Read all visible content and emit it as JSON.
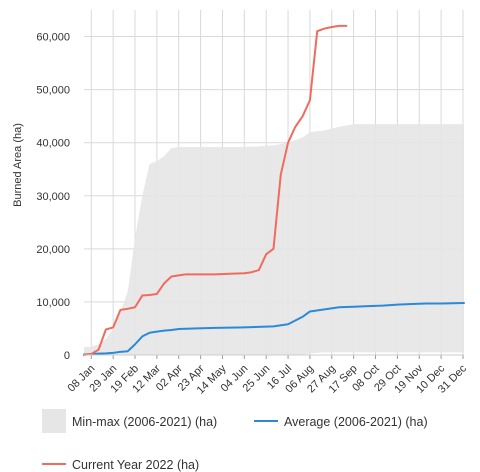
{
  "chart_data": {
    "type": "line",
    "title": "",
    "ylabel": "Burned Area (ha)",
    "xlabel": "",
    "ylim": [
      0,
      65000
    ],
    "yticks": [
      0,
      10000,
      20000,
      30000,
      40000,
      50000,
      60000
    ],
    "ytick_labels": [
      "0",
      "10,000",
      "20,000",
      "30,000",
      "40,000",
      "50,000",
      "60,000"
    ],
    "x_day_min": 1,
    "x_day_max": 366,
    "xticks": [
      {
        "label": "08 Jan",
        "day": 8
      },
      {
        "label": "29 Jan",
        "day": 29
      },
      {
        "label": "19 Feb",
        "day": 50
      },
      {
        "label": "12 Mar",
        "day": 71
      },
      {
        "label": "02 Apr",
        "day": 92
      },
      {
        "label": "23 Apr",
        "day": 113
      },
      {
        "label": "14 May",
        "day": 134
      },
      {
        "label": "04 Jun",
        "day": 155
      },
      {
        "label": "25 Jun",
        "day": 176
      },
      {
        "label": "16 Jul",
        "day": 197
      },
      {
        "label": "06 Aug",
        "day": 218
      },
      {
        "label": "27 Aug",
        "day": 239
      },
      {
        "label": "17 Sep",
        "day": 260
      },
      {
        "label": "08 Oct",
        "day": 281
      },
      {
        "label": "29 Oct",
        "day": 302
      },
      {
        "label": "19 Nov",
        "day": 323
      },
      {
        "label": "10 Dec",
        "day": 344
      },
      {
        "label": "31 Dec",
        "day": 365
      }
    ],
    "grid": true,
    "legend_position": "bottom",
    "series": [
      {
        "name": "Min-max (2006-2021) (ha)",
        "kind": "band",
        "color": "#e6e6e6",
        "x": [
          1,
          8,
          15,
          22,
          29,
          36,
          43,
          50,
          57,
          64,
          71,
          78,
          85,
          92,
          99,
          106,
          113,
          127,
          141,
          155,
          169,
          183,
          197,
          204,
          211,
          218,
          232,
          246,
          260,
          274,
          288,
          302,
          316,
          330,
          344,
          366
        ],
        "min": [
          0,
          0,
          0,
          0,
          0,
          0,
          0,
          0,
          0,
          0,
          0,
          0,
          0,
          0,
          0,
          0,
          0,
          0,
          0,
          0,
          0,
          0,
          0,
          0,
          0,
          300,
          500,
          500,
          500,
          500,
          500,
          500,
          500,
          500,
          500,
          500
        ],
        "max": [
          1500,
          1500,
          2000,
          3000,
          5000,
          8000,
          12000,
          22000,
          30000,
          36000,
          36500,
          37500,
          39000,
          39200,
          39200,
          39200,
          39200,
          39200,
          39200,
          39200,
          39300,
          39500,
          40000,
          40500,
          41000,
          42000,
          42300,
          43000,
          43500,
          43500,
          43500,
          43500,
          43500,
          43500,
          43500,
          43500
        ]
      },
      {
        "name": "Average (2006-2021) (ha)",
        "kind": "line",
        "color": "#2a8ad8",
        "x": [
          1,
          8,
          15,
          22,
          29,
          36,
          43,
          50,
          57,
          64,
          71,
          78,
          85,
          92,
          106,
          127,
          141,
          155,
          169,
          183,
          197,
          204,
          211,
          218,
          232,
          246,
          260,
          274,
          288,
          302,
          316,
          330,
          344,
          366
        ],
        "values": [
          100,
          200,
          250,
          300,
          400,
          600,
          700,
          2000,
          3500,
          4200,
          4400,
          4600,
          4700,
          4900,
          5000,
          5100,
          5150,
          5200,
          5300,
          5400,
          5800,
          6500,
          7200,
          8200,
          8600,
          9000,
          9100,
          9200,
          9300,
          9500,
          9600,
          9700,
          9700,
          9800
        ]
      },
      {
        "name": "Current Year 2022 (ha)",
        "kind": "line",
        "color": "#f06b5e",
        "x": [
          1,
          8,
          15,
          22,
          29,
          36,
          43,
          50,
          57,
          64,
          71,
          78,
          85,
          92,
          99,
          106,
          113,
          127,
          141,
          155,
          162,
          169,
          176,
          183,
          190,
          197,
          204,
          211,
          218,
          225,
          232,
          239,
          246,
          253
        ],
        "values": [
          0,
          200,
          1000,
          4800,
          5200,
          8500,
          8700,
          9000,
          11200,
          11300,
          11500,
          13500,
          14800,
          15000,
          15200,
          15200,
          15200,
          15200,
          15300,
          15400,
          15600,
          16000,
          19000,
          20000,
          34000,
          40000,
          43000,
          45000,
          48000,
          61000,
          61500,
          61800,
          62000,
          62000
        ]
      }
    ]
  }
}
